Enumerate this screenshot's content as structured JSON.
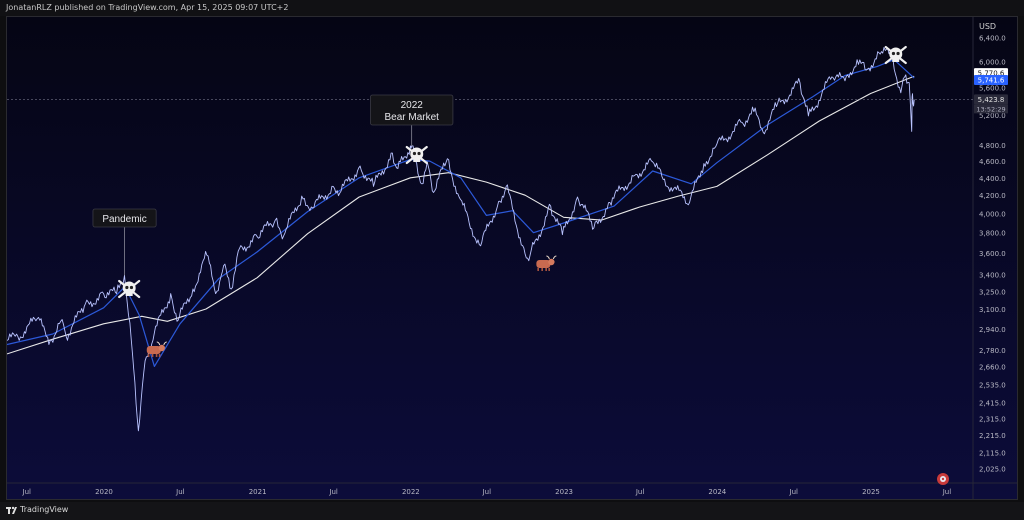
{
  "header": {
    "published_text": "JonatanRLZ published on TradingView.com, Apr 15, 2025 09:07 UTC+2"
  },
  "footer": {
    "brand": "TradingView"
  },
  "currency_label": "USD",
  "colors": {
    "background_top": "#050514",
    "background_bottom": "#0c0c3a",
    "price": "#b9c3ff",
    "ma_fast": "#2c59d9",
    "ma_slow": "#e8e8e8",
    "last_price_tag": "#2962ff",
    "text": "#b8b8c4"
  },
  "chart_data": {
    "type": "line",
    "title": "",
    "xlabel": "",
    "ylabel": "",
    "y_scale": "log",
    "ylim": [
      1980,
      6650
    ],
    "xlim": [
      "2019-05-15",
      "2025-09-01"
    ],
    "grid": false,
    "x_ticks": [
      "Jul",
      "2020",
      "Jul",
      "2021",
      "Jul",
      "2022",
      "Jul",
      "2023",
      "Jul",
      "2024",
      "Jul",
      "2025",
      "Jul"
    ],
    "x_tick_dates": [
      "2019-07-01",
      "2020-01-01",
      "2020-07-01",
      "2021-01-01",
      "2021-07-01",
      "2022-01-01",
      "2022-07-01",
      "2023-01-01",
      "2023-07-01",
      "2024-01-01",
      "2024-07-01",
      "2025-01-01",
      "2025-07-01"
    ],
    "y_ticks": [
      6400,
      6000,
      5600,
      5200,
      4800,
      4600,
      4400,
      4200,
      4000,
      3800,
      3600,
      3400,
      3250,
      3100,
      2940,
      2780,
      2660,
      2535,
      2415,
      2315,
      2215,
      2115,
      2025
    ],
    "y_tick_labels": [
      "6,400.0",
      "6,000.0",
      "5,600.0",
      "5,200.0",
      "4,800.0",
      "4,600.0",
      "4,400.0",
      "4,200.0",
      "4,000.0",
      "3,800.0",
      "3,600.0",
      "3,400.0",
      "3,250.0",
      "3,100.0",
      "2,940.0",
      "2,780.0",
      "2,660.0",
      "2,535.0",
      "2,415.0",
      "2,315.0",
      "2,215.0",
      "2,115.0",
      "2,025.0"
    ],
    "series": [
      {
        "role": "price",
        "x": [
          "2019-05-15",
          "2019-06-10",
          "2019-07-26",
          "2019-08-26",
          "2019-09-20",
          "2019-10-03",
          "2019-11-15",
          "2019-12-31",
          "2020-01-31",
          "2020-02-19",
          "2020-03-09",
          "2020-03-23",
          "2020-04-08",
          "2020-04-30",
          "2020-06-08",
          "2020-06-26",
          "2020-07-31",
          "2020-09-02",
          "2020-09-23",
          "2020-10-12",
          "2020-10-30",
          "2020-11-16",
          "2020-12-31",
          "2021-02-12",
          "2021-03-04",
          "2021-04-16",
          "2021-05-12",
          "2021-06-30",
          "2021-07-19",
          "2021-09-02",
          "2021-10-04",
          "2021-11-18",
          "2021-12-01",
          "2021-12-31",
          "2022-01-03",
          "2022-01-27",
          "2022-02-09",
          "2022-02-24",
          "2022-03-29",
          "2022-04-26",
          "2022-05-20",
          "2022-06-16",
          "2022-07-29",
          "2022-08-16",
          "2022-09-30",
          "2022-10-12",
          "2022-11-30",
          "2022-12-28",
          "2023-02-02",
          "2023-03-13",
          "2023-04-20",
          "2023-06-15",
          "2023-07-31",
          "2023-08-25",
          "2023-10-27",
          "2023-11-30",
          "2023-12-28",
          "2024-02-29",
          "2024-03-28",
          "2024-04-19",
          "2024-05-21",
          "2024-07-16",
          "2024-08-05",
          "2024-09-30",
          "2024-10-31",
          "2024-11-29",
          "2024-12-18",
          "2025-01-23",
          "2025-02-19",
          "2025-03-13",
          "2025-03-25",
          "2025-04-02",
          "2025-04-08",
          "2025-04-09",
          "2025-04-11",
          "2025-04-14"
        ],
        "values": [
          2850,
          2880,
          3020,
          2850,
          3000,
          2880,
          3120,
          3230,
          3230,
          3390,
          2750,
          2240,
          2700,
          2910,
          3230,
          3010,
          3270,
          3580,
          3230,
          3480,
          3270,
          3620,
          3760,
          3930,
          3770,
          4190,
          4060,
          4300,
          4250,
          4540,
          4300,
          4700,
          4510,
          4790,
          4790,
          4330,
          4590,
          4230,
          4630,
          4180,
          3900,
          3670,
          4130,
          4300,
          3590,
          3580,
          4080,
          3780,
          4180,
          3850,
          4120,
          4420,
          4590,
          4380,
          4120,
          4570,
          4780,
          5100,
          5250,
          4970,
          5320,
          5670,
          5190,
          5760,
          5700,
          6030,
          5870,
          6120,
          6140,
          5520,
          5790,
          5670,
          4980,
          5460,
          5360,
          5420
        ]
      },
      {
        "role": "ma_fast",
        "x": [
          "2019-05-15",
          "2019-09-01",
          "2019-12-31",
          "2020-02-20",
          "2020-03-25",
          "2020-04-30",
          "2020-06-30",
          "2020-09-30",
          "2020-12-31",
          "2021-04-30",
          "2021-08-31",
          "2021-12-31",
          "2022-02-15",
          "2022-04-30",
          "2022-06-30",
          "2022-08-31",
          "2022-10-20",
          "2022-12-31",
          "2023-04-30",
          "2023-07-31",
          "2023-10-31",
          "2023-12-31",
          "2024-04-30",
          "2024-08-15",
          "2024-10-31",
          "2025-01-15",
          "2025-02-25",
          "2025-04-14"
        ],
        "values": [
          2820,
          2900,
          3110,
          3290,
          3050,
          2660,
          2980,
          3360,
          3610,
          4020,
          4400,
          4620,
          4600,
          4400,
          3980,
          4030,
          3800,
          3900,
          4080,
          4480,
          4330,
          4580,
          5070,
          5460,
          5780,
          5920,
          6030,
          5740
        ]
      },
      {
        "role": "ma_slow",
        "x": [
          "2019-05-15",
          "2019-09-01",
          "2019-12-31",
          "2020-03-31",
          "2020-05-31",
          "2020-08-31",
          "2020-12-31",
          "2021-04-30",
          "2021-08-31",
          "2021-12-31",
          "2022-04-01",
          "2022-06-30",
          "2022-09-30",
          "2022-12-31",
          "2023-03-31",
          "2023-06-30",
          "2023-09-30",
          "2023-12-31",
          "2024-04-30",
          "2024-08-31",
          "2024-12-31",
          "2025-04-14"
        ],
        "values": [
          2750,
          2860,
          2980,
          3040,
          3000,
          3100,
          3370,
          3790,
          4180,
          4400,
          4460,
          4350,
          4200,
          3960,
          3930,
          4070,
          4190,
          4300,
          4680,
          5120,
          5510,
          5770
        ]
      }
    ],
    "price_labels": [
      {
        "role": "ma_slow",
        "text": "5,770.6",
        "value": 5770.6
      },
      {
        "role": "ma_fast",
        "text": "5,741.6",
        "value": 5741.6
      },
      {
        "role": "last",
        "text": "5,423.8",
        "value": 5423.8,
        "countdown": "13:52:29"
      }
    ],
    "annotations": [
      {
        "text": "Pandemic",
        "date": "2020-02-19",
        "value": 3390
      },
      {
        "text": "2022 Bear Market",
        "date": "2022-01-03",
        "value": 4790
      }
    ],
    "event_icons": [
      {
        "name": "skull-icon",
        "date": "2020-03-01",
        "value": 3360
      },
      {
        "name": "skull-icon",
        "date": "2022-01-15",
        "value": 4790
      },
      {
        "name": "skull-icon",
        "date": "2025-03-01",
        "value": 6400
      },
      {
        "name": "bull-icon",
        "date": "2020-05-01",
        "value": 2880
      },
      {
        "name": "bull-icon",
        "date": "2022-11-15",
        "value": 3590
      }
    ]
  }
}
